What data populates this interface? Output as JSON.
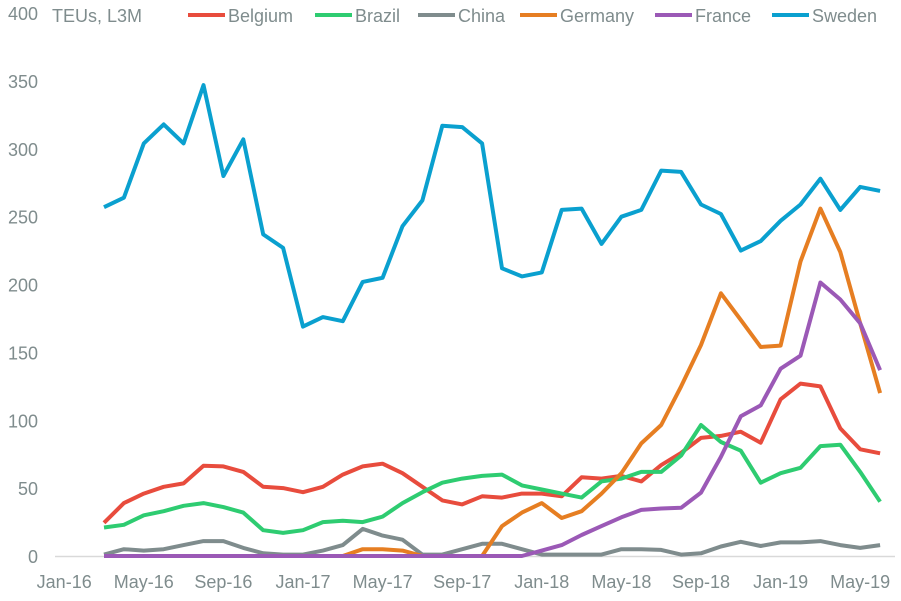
{
  "chart_data": {
    "type": "line",
    "title": "",
    "ylabel": "TEUs, L3M",
    "xlabel": "",
    "ylim": [
      0,
      400
    ],
    "y_ticks": [
      0,
      50,
      100,
      150,
      200,
      250,
      300,
      350,
      400
    ],
    "grid": false,
    "legend": "top",
    "x": [
      "Mar-16",
      "Apr-16",
      "May-16",
      "Jun-16",
      "Jul-16",
      "Aug-16",
      "Sep-16",
      "Oct-16",
      "Nov-16",
      "Dec-16",
      "Jan-17",
      "Feb-17",
      "Mar-17",
      "Apr-17",
      "May-17",
      "Jun-17",
      "Jul-17",
      "Aug-17",
      "Sep-17",
      "Oct-17",
      "Nov-17",
      "Dec-17",
      "Jan-18",
      "Feb-18",
      "Mar-18",
      "Apr-18",
      "May-18",
      "Jun-18",
      "Jul-18",
      "Aug-18",
      "Sep-18",
      "Oct-18",
      "Nov-18",
      "Dec-18",
      "Jan-19",
      "Feb-19",
      "Mar-19",
      "Apr-19",
      "May-19",
      "Jun-19"
    ],
    "x_tick_labels": [
      "Jan-16",
      "May-16",
      "Sep-16",
      "Jan-17",
      "May-17",
      "Sep-17",
      "Jan-18",
      "May-18",
      "Sep-18",
      "Jan-19",
      "May-19"
    ],
    "series": [
      {
        "name": "Belgium",
        "color": "#e84c3d",
        "values": [
          24.5,
          39,
          46,
          51,
          53.5,
          66.5,
          66,
          62,
          51,
          50,
          47,
          51,
          60,
          66,
          68,
          61,
          51,
          41,
          38,
          44,
          43,
          46,
          46,
          44,
          58,
          57,
          59,
          55,
          67,
          76,
          87,
          88.5,
          91.6,
          83.5,
          115.5,
          127,
          125,
          94,
          78.6,
          75.7
        ]
      },
      {
        "name": "Brazil",
        "color": "#2ecc71",
        "values": [
          21,
          23,
          30,
          33,
          37,
          39,
          36,
          32,
          19,
          17,
          19,
          25,
          26,
          25,
          29,
          39,
          47,
          54,
          57,
          59,
          60,
          52,
          49,
          46,
          43,
          55,
          57,
          62,
          62,
          74,
          96.5,
          84,
          77.6,
          54,
          61,
          65,
          81,
          82,
          62,
          40
        ]
      },
      {
        "name": "China",
        "color": "#7f8c8d",
        "values": [
          1,
          5,
          4,
          5,
          8,
          11,
          11,
          6,
          2,
          1,
          1,
          4,
          8,
          20,
          15,
          12,
          1,
          1,
          5,
          9,
          9,
          5,
          1,
          1,
          1,
          1,
          5,
          5,
          4.5,
          1,
          2,
          7,
          10.5,
          7.4,
          10,
          10,
          11,
          8,
          6,
          8
        ]
      },
      {
        "name": "Germany",
        "color": "#e67e22",
        "values": [
          0,
          0,
          0,
          0,
          0,
          0,
          0,
          0,
          0,
          0,
          0,
          0,
          0,
          5,
          5,
          4,
          0,
          0,
          0,
          0,
          22,
          32,
          39,
          28,
          33,
          46,
          61,
          83,
          96.5,
          125,
          155.5,
          193.6,
          174,
          154,
          155,
          217,
          256,
          224,
          171.5,
          120
        ]
      },
      {
        "name": "France",
        "color": "#9b59b6",
        "values": [
          0,
          0,
          0,
          0,
          0,
          0,
          0,
          0,
          0,
          0,
          0,
          0,
          0,
          0,
          0,
          0,
          0,
          0,
          0,
          0,
          0,
          0,
          4,
          8,
          15.5,
          22,
          28.5,
          34,
          35,
          35.5,
          46.7,
          73,
          103,
          111,
          138,
          147.6,
          201.5,
          189,
          171.5,
          137
        ]
      },
      {
        "name": "Sweden",
        "color": "#0aa0cf",
        "values": [
          257,
          264,
          304,
          318,
          304,
          347,
          280,
          307,
          237,
          227,
          169,
          176,
          173,
          202,
          205,
          243,
          262,
          317,
          316,
          304,
          212,
          206,
          209,
          255,
          256,
          230,
          250,
          255,
          284,
          283,
          259,
          252,
          225,
          232,
          247,
          259,
          278,
          255,
          272,
          269
        ]
      }
    ]
  }
}
